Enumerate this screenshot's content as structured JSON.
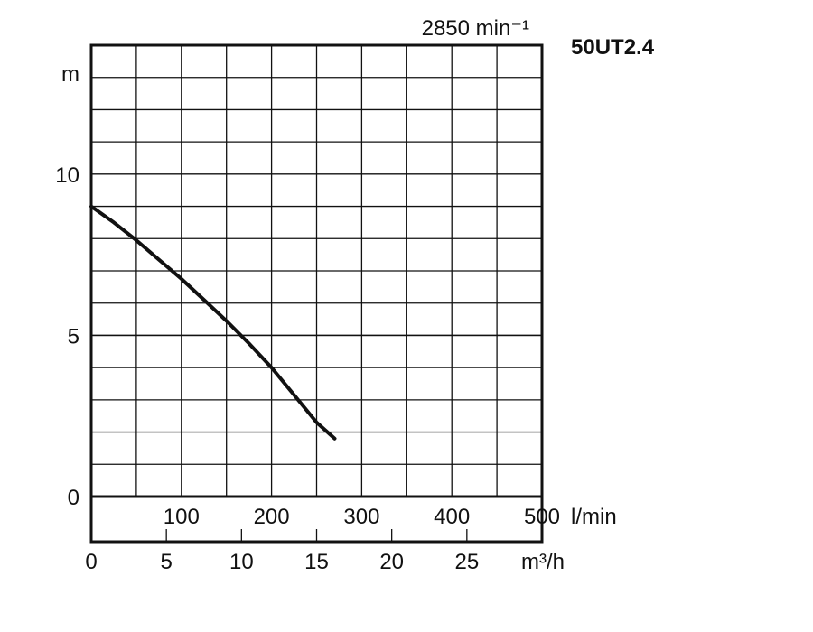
{
  "chart_data": {
    "type": "line",
    "title": "50UT2.4",
    "speed_label": "2850 min⁻¹",
    "ylabel": "m",
    "ylim": [
      0,
      14
    ],
    "y_ticks": [
      0,
      5,
      10
    ],
    "y_tick_labels": [
      "0",
      "5",
      "10"
    ],
    "x_primary": {
      "unit": "l/min",
      "lim": [
        0,
        500
      ],
      "ticks": [
        100,
        200,
        300,
        400,
        500
      ],
      "tick_labels": [
        "100",
        "200",
        "300",
        "400",
        "500"
      ]
    },
    "x_secondary": {
      "unit": "m³/h",
      "lim": [
        0,
        30
      ],
      "ticks": [
        0,
        5,
        10,
        15,
        20,
        25
      ],
      "tick_labels": [
        "0",
        "5",
        "10",
        "15",
        "20",
        "25"
      ]
    },
    "grid": true,
    "series": [
      {
        "x_unit": "l/min",
        "x": [
          0,
          25,
          50,
          75,
          100,
          125,
          150,
          175,
          200,
          225,
          250,
          270
        ],
        "y": [
          9.0,
          8.5,
          7.95,
          7.35,
          6.75,
          6.1,
          5.45,
          4.75,
          4.0,
          3.15,
          2.3,
          1.8
        ]
      }
    ]
  }
}
